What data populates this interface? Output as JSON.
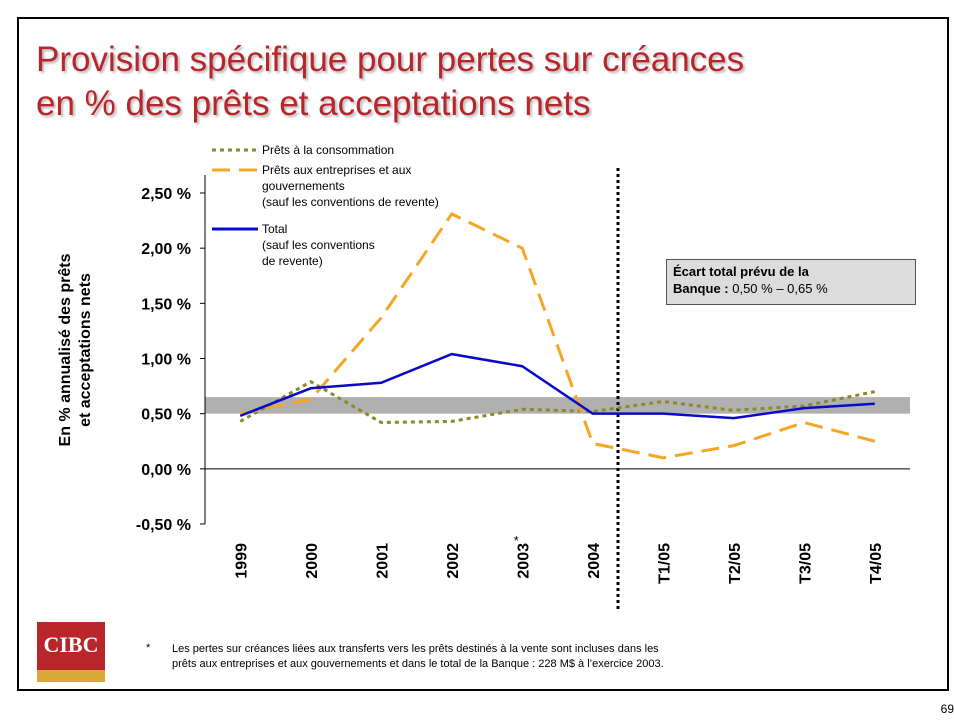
{
  "header": {
    "title": "Provision spécifique pour pertes sur créances\nen % des prêts et acceptations nets"
  },
  "chart_data": {
    "type": "line",
    "y_label": [
      "En % annualisé des prêts",
      "et acceptations nets"
    ],
    "categories": [
      "1999",
      "2000",
      "2001",
      "2002",
      "2003",
      "2004",
      "T1/05",
      "T2/05",
      "T3/05",
      "T4/05"
    ],
    "category_note": {
      "index": 4,
      "mark": "*"
    },
    "series": [
      {
        "name": "Prêts à la consommation",
        "color": "#8a8a2a",
        "style": "dotted",
        "values": [
          0.43,
          0.79,
          0.42,
          0.43,
          0.54,
          0.52,
          0.61,
          0.53,
          0.57,
          0.7
        ]
      },
      {
        "name": "Prêts aux entreprises et aux\ngouvernements\n(sauf les conventions de revente)",
        "color": "#f5a623",
        "style": "dashed",
        "values": [
          0.5,
          0.63,
          1.37,
          2.31,
          2.0,
          0.23,
          0.1,
          0.21,
          0.42,
          0.25
        ]
      },
      {
        "name": "Total\n(sauf les conventions\nde revente)",
        "color": "#0a0acc",
        "style": "solid",
        "values": [
          0.48,
          0.73,
          0.78,
          1.04,
          0.93,
          0.5,
          0.5,
          0.46,
          0.55,
          0.59
        ]
      }
    ],
    "target_range": [
      0.5,
      0.65
    ],
    "annotation": {
      "bold": "Écart total prévu de la\nBanque :",
      "text": " 0,50 % – 0,65 %"
    },
    "ylim": [
      -0.5,
      2.5
    ],
    "yticks": [
      {
        "value": -0.5,
        "label": "-0,50 %"
      },
      {
        "value": 0,
        "label": "0,00 %"
      },
      {
        "value": 0.5,
        "label": "0,50 %"
      },
      {
        "value": 1,
        "label": "1,00 %"
      },
      {
        "value": 1.5,
        "label": "1,50 %"
      },
      {
        "value": 2,
        "label": "2,00 %"
      },
      {
        "value": 2.5,
        "label": "2,50 %"
      }
    ]
  },
  "footnote": {
    "mark": "*",
    "text": "Les pertes sur créances liées aux transferts vers les prêts destinés à la vente sont incluses dans les\nprêts aux entreprises et aux gouvernements et dans le total de la Banque : 228 M$ à l’exercice 2003."
  },
  "logo": "CIBC",
  "page_number": "69"
}
